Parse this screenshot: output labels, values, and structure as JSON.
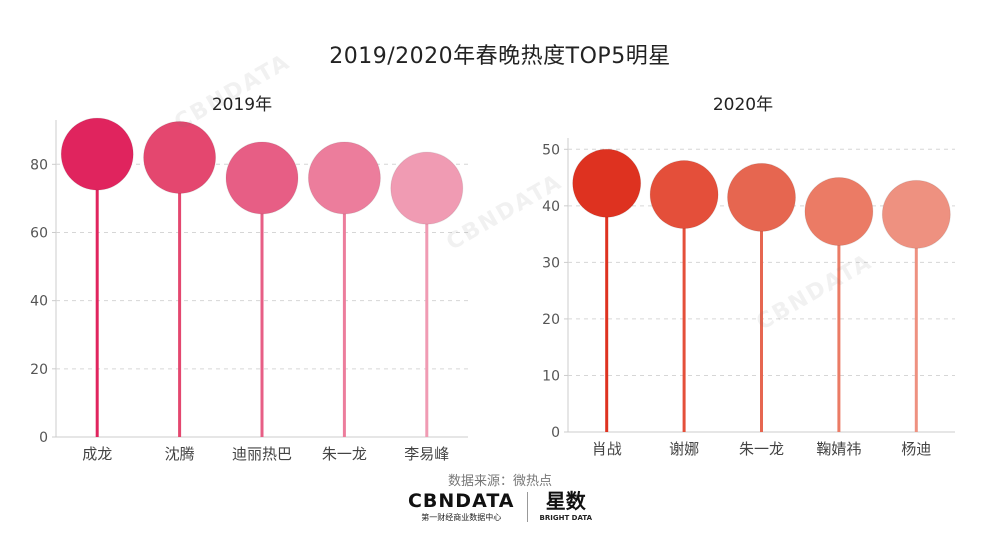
{
  "title": "2019/2020年春晚热度TOP5明星",
  "source_text": "数据来源：微热点",
  "logos": {
    "cbndata_main": "CBNDATA",
    "cbndata_sub": "第一财经商业数据中心",
    "xingshu_main": "星数",
    "xingshu_sub": "BRIGHT DATA"
  },
  "watermark": "CBNDATA",
  "chart_data": [
    {
      "type": "lollipop",
      "title": "2019年",
      "categories": [
        "成龙",
        "沈腾",
        "迪丽热巴",
        "朱一龙",
        "李易峰"
      ],
      "values": [
        83,
        82,
        76,
        76,
        73
      ],
      "ylim": [
        0,
        93
      ],
      "yticks": [
        0,
        20,
        40,
        60,
        80
      ],
      "colors": [
        "#e0245e",
        "#e4476f",
        "#e75e85",
        "#ec7d9c",
        "#f09bb3"
      ],
      "grid": true
    },
    {
      "type": "lollipop",
      "title": "2020年",
      "categories": [
        "肖战",
        "谢娜",
        "朱一龙",
        "鞠婧祎",
        "杨迪"
      ],
      "values": [
        44,
        42,
        41.5,
        39,
        38.5
      ],
      "ylim": [
        0,
        52
      ],
      "yticks": [
        0,
        10,
        20,
        30,
        40,
        50
      ],
      "colors": [
        "#de3220",
        "#e44f3a",
        "#e66650",
        "#eb7b65",
        "#ee9180"
      ],
      "grid": true
    }
  ]
}
